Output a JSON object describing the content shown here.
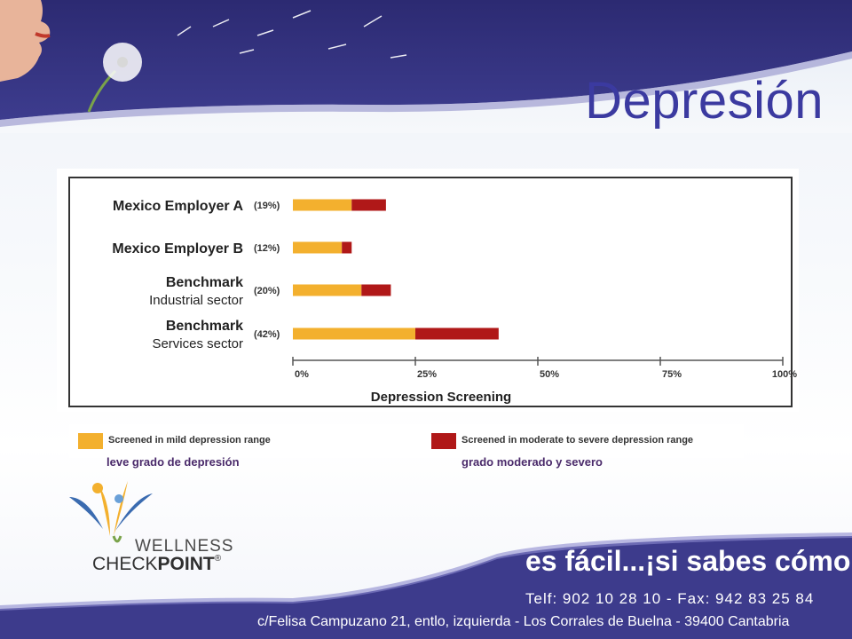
{
  "slide": {
    "title": "Depresión"
  },
  "chart_data": {
    "type": "bar",
    "stacked": true,
    "orientation": "horizontal",
    "categories": [
      [
        "Mexico Employer A"
      ],
      [
        "Mexico Employer B"
      ],
      [
        "Benchmark",
        "Industrial sector"
      ],
      [
        "Benchmark",
        "Services sector"
      ]
    ],
    "category_totals_labels": [
      "(19%)",
      "(12%)",
      "(20%)",
      "(42%)"
    ],
    "series": [
      {
        "name": "Screened in mild depression range",
        "color": "#f3b02e",
        "values": [
          12,
          10,
          14,
          25
        ]
      },
      {
        "name": "Screened in moderate to severe depression range",
        "color": "#b01818",
        "values": [
          7,
          2,
          6,
          17
        ]
      }
    ],
    "xlabel": "Depression Screening",
    "x_ticks": [
      "0%",
      "25%",
      "50%",
      "75%",
      "100%"
    ],
    "xlim": [
      0,
      100
    ],
    "legend_position": "bottom"
  },
  "legend": {
    "mild": {
      "label": "Screened in mild depression range",
      "subtitle": "leve grado de depresión"
    },
    "moderate": {
      "label": "Screened in moderate to severe depression range",
      "subtitle": "grado moderado y severo"
    }
  },
  "logo": {
    "line1": "WELLNESS",
    "line2_prefix": "CHECK",
    "line2_bold": "POINT",
    "mark": "®"
  },
  "footer": {
    "tagline": "es fácil...¡si sabes cómo! S.L",
    "phones": "Telf: 902 10 28 10 - Fax: 942 83 25 84",
    "address": "c/Felisa Campuzano 21, entlo, izquierda - Los Corrales de Buelna - 39400 Cantabria"
  },
  "colors": {
    "title": "#3b3aa0",
    "footer_band": "#3d3b8c",
    "mild": "#f3b02e",
    "moderate": "#b01818"
  }
}
